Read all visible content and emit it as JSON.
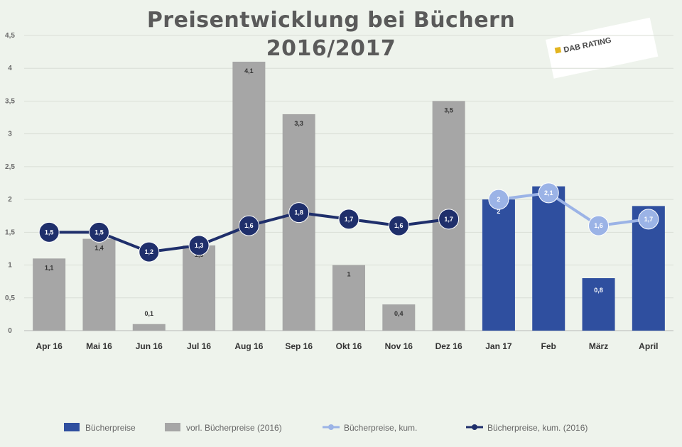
{
  "chart_data": {
    "type": "bar",
    "title_line1": "Preisentwicklung bei Büchern",
    "title_line2": "2016/2017",
    "categories": [
      "Apr 16",
      "Mai 16",
      "Jun 16",
      "Jul 16",
      "Aug 16",
      "Sep 16",
      "Okt 16",
      "Nov 16",
      "Dez 16",
      "Jan 17",
      "Feb",
      "März",
      "April"
    ],
    "ylim": [
      0,
      4.5
    ],
    "yticks": [
      {
        "value": 0,
        "label": "0"
      },
      {
        "value": 0.5,
        "label": "0,5"
      },
      {
        "value": 1,
        "label": "1"
      },
      {
        "value": 1.5,
        "label": "1,5"
      },
      {
        "value": 2,
        "label": "2"
      },
      {
        "value": 2.5,
        "label": "2,5"
      },
      {
        "value": 3,
        "label": "3"
      },
      {
        "value": 3.5,
        "label": "3,5"
      },
      {
        "value": 4,
        "label": "4"
      },
      {
        "value": 4.5,
        "label": "4,5"
      }
    ],
    "grid": true,
    "legend_position": "bottom",
    "series": [
      {
        "name": "Bücherpreise",
        "kind": "bar",
        "color": "#2f4f9f",
        "values": [
          null,
          null,
          null,
          null,
          null,
          null,
          null,
          null,
          null,
          2.0,
          2.2,
          0.8,
          1.9
        ],
        "labels": [
          "",
          "",
          "",
          "",
          "",
          "",
          "",
          "",
          "",
          "2",
          "2,2",
          "0,8",
          "1,9"
        ]
      },
      {
        "name": "vorl. Bücherpreise (2016)",
        "kind": "bar",
        "color": "#a6a6a6",
        "values": [
          1.1,
          1.4,
          0.1,
          1.3,
          4.1,
          3.3,
          1.0,
          0.4,
          3.5,
          null,
          null,
          null,
          null
        ],
        "labels": [
          "1,1",
          "1,4",
          "0,1",
          "1,3",
          "4,1",
          "3,3",
          "1",
          "0,4",
          "3,5",
          "",
          "",
          "",
          ""
        ]
      },
      {
        "name": "Bücherpreise, kum.",
        "kind": "line",
        "color": "#9bb3e6",
        "values": [
          null,
          null,
          null,
          null,
          null,
          null,
          null,
          null,
          null,
          2.0,
          2.1,
          1.6,
          1.7
        ],
        "labels": [
          "",
          "",
          "",
          "",
          "",
          "",
          "",
          "",
          "",
          "2",
          "2,1",
          "1,6",
          "1,7"
        ]
      },
      {
        "name": "Bücherpreise, kum. (2016)",
        "kind": "line",
        "color": "#1f2f6b",
        "values": [
          1.5,
          1.5,
          1.2,
          1.3,
          1.6,
          1.8,
          1.7,
          1.6,
          1.7,
          null,
          null,
          null,
          null
        ],
        "labels": [
          "1,5",
          "1,5",
          "1,2",
          "1,3",
          "1,6",
          "1,8",
          "1,7",
          "1,6",
          "1,7",
          "",
          "",
          "",
          ""
        ]
      }
    ]
  },
  "logo": {
    "text": "DAB RATING"
  }
}
